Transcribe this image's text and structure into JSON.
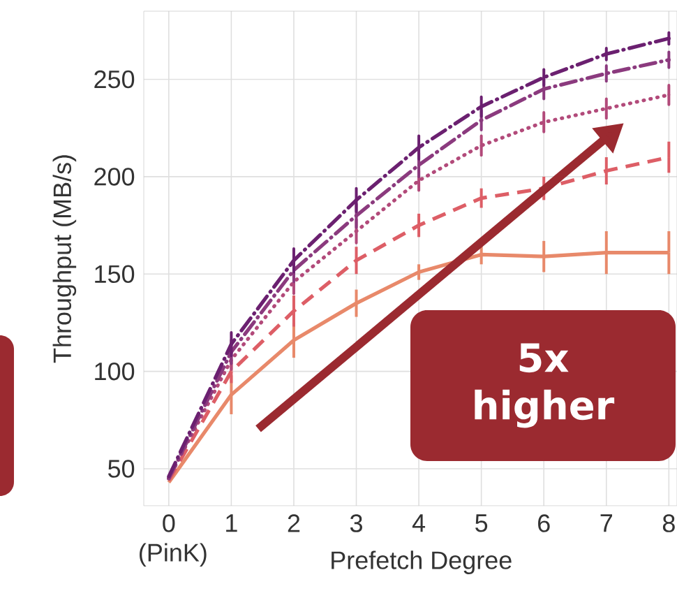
{
  "chart_data": {
    "type": "line",
    "xlabel": "Prefetch Degree",
    "ylabel": "Throughput (MB/s)",
    "x": [
      0,
      1,
      2,
      3,
      4,
      5,
      6,
      7,
      8
    ],
    "xlim": [
      -0.4,
      8.13
    ],
    "ylim": [
      31,
      285
    ],
    "xticks": [
      {
        "value": 0,
        "label": "0 (PinK)"
      },
      1,
      2,
      3,
      4,
      5,
      6,
      7,
      8
    ],
    "yticks": [
      50,
      100,
      150,
      200,
      250
    ],
    "grid": true,
    "annotations": [
      "5x higher"
    ],
    "series": [
      {
        "color": "#e8896a",
        "line_style": "solid",
        "values": [
          43,
          88,
          116,
          135,
          151,
          160,
          159,
          161,
          161
        ],
        "errors": [
          null,
          10,
          9,
          7,
          4,
          5,
          8,
          11,
          11
        ]
      },
      {
        "color": "#dd5e66",
        "line_style": "dashed",
        "values": [
          44,
          100,
          131,
          157,
          175,
          189,
          194,
          203,
          210
        ],
        "errors": [
          null,
          6,
          8,
          7,
          6,
          5,
          6,
          7,
          8
        ]
      },
      {
        "color": "#b24a7a",
        "line_style": "dotted",
        "values": [
          45,
          106,
          146,
          172,
          198,
          216,
          228,
          235,
          242
        ],
        "errors": [
          null,
          5,
          6,
          6,
          5,
          5,
          5,
          5,
          5
        ]
      },
      {
        "color": "#8b3a7e",
        "line_style": "dashdot",
        "values": [
          45,
          110,
          152,
          180,
          206,
          229,
          245,
          253,
          260
        ],
        "errors": [
          null,
          6,
          6,
          6,
          6,
          5,
          5,
          4,
          4
        ]
      },
      {
        "color": "#6b2070",
        "line_style": "dashdot",
        "values": [
          46,
          114,
          157,
          188,
          215,
          236,
          251,
          263,
          271
        ],
        "errors": [
          null,
          6,
          6,
          6,
          6,
          5,
          4,
          3,
          3
        ]
      }
    ]
  }
}
